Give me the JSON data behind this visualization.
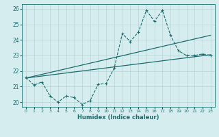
{
  "title": "",
  "xlabel": "Humidex (Indice chaleur)",
  "ylabel": "",
  "xlim": [
    -0.5,
    23.5
  ],
  "ylim": [
    19.7,
    26.3
  ],
  "yticks": [
    20,
    21,
    22,
    23,
    24,
    25,
    26
  ],
  "xticks": [
    0,
    1,
    2,
    3,
    4,
    5,
    6,
    7,
    8,
    9,
    10,
    11,
    12,
    13,
    14,
    15,
    16,
    17,
    18,
    19,
    20,
    21,
    22,
    23
  ],
  "bg_color": "#d6edef",
  "grid_color": "#b8d4d6",
  "line_color": "#1a6b6b",
  "line1_x": [
    0,
    1,
    2,
    3,
    4,
    5,
    6,
    7,
    8,
    9,
    10,
    11,
    12,
    13,
    14,
    15,
    16,
    17,
    18,
    19,
    20,
    21,
    22,
    23
  ],
  "line1_y": [
    21.6,
    21.1,
    21.3,
    20.4,
    20.0,
    20.4,
    20.3,
    19.85,
    20.1,
    21.15,
    21.2,
    22.2,
    24.4,
    23.9,
    24.5,
    25.9,
    25.2,
    25.9,
    24.3,
    23.3,
    23.0,
    23.0,
    23.1,
    23.0
  ],
  "line2_x": [
    0,
    23
  ],
  "line2_y": [
    21.55,
    23.05
  ],
  "line3_x": [
    0,
    23
  ],
  "line3_y": [
    21.55,
    24.3
  ],
  "figsize": [
    3.2,
    2.0
  ],
  "dpi": 100
}
